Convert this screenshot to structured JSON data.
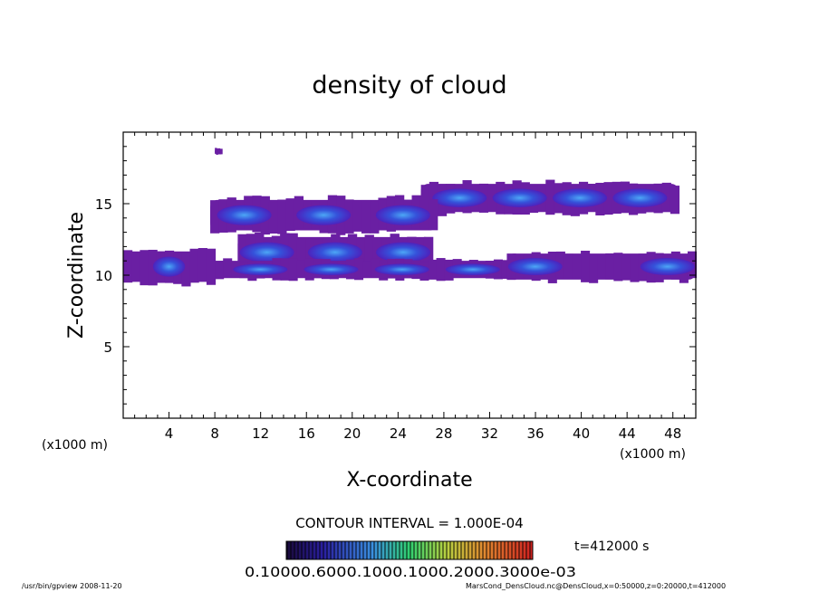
{
  "chart_data": {
    "type": "heatmap",
    "title": "density of cloud",
    "xlabel": "X-coordinate",
    "ylabel": "Z-coordinate",
    "x_unit_left": "(x1000 m)",
    "x_unit_right": "(x1000 m)",
    "xlim": [
      0,
      50
    ],
    "ylim": [
      0,
      20
    ],
    "x_ticks": [
      "4",
      "8",
      "12",
      "16",
      "20",
      "24",
      "28",
      "32",
      "36",
      "40",
      "44",
      "48"
    ],
    "y_ticks": [
      "5",
      "10",
      "15"
    ],
    "contour_interval": "CONTOUR INTERVAL = 1.000E-04",
    "time_label": "t=412000 s",
    "colorbar_labels": "0.10000.6000.1000.1000.2000.3000e-03",
    "colors": {
      "background": "#ffffff",
      "low": "#6a1fa3",
      "mid": "#3a1fd0",
      "high": "#1f6ce0",
      "peak": "#49b6ff"
    },
    "cloud_regions": [
      {
        "name": "upper isolated speck",
        "x": [
          8.0,
          8.6
        ],
        "z": [
          18.4,
          18.9
        ]
      },
      {
        "name": "right upper layer",
        "x": [
          26,
          48.5
        ],
        "z": [
          14.1,
          16.7
        ]
      },
      {
        "name": "middle-upper layer",
        "x": [
          7.6,
          27.4
        ],
        "z": [
          12.8,
          15.6
        ]
      },
      {
        "name": "middle layer",
        "x": [
          10.0,
          27.0
        ],
        "z": [
          10.2,
          13.0
        ]
      },
      {
        "name": "lower left band",
        "x": [
          0,
          8.0
        ],
        "z": [
          9.2,
          12.0
        ]
      },
      {
        "name": "lower central band",
        "x": [
          8.0,
          34.5
        ],
        "z": [
          9.6,
          11.2
        ]
      },
      {
        "name": "lower right band",
        "x": [
          33.5,
          50
        ],
        "z": [
          9.4,
          11.8
        ]
      }
    ]
  },
  "footer": {
    "left": "/usr/bin/gpview   2008-11-20",
    "right": "MarsCond_DensCloud.nc@DensCloud,x=0:50000,z=0:20000,t=412000"
  }
}
